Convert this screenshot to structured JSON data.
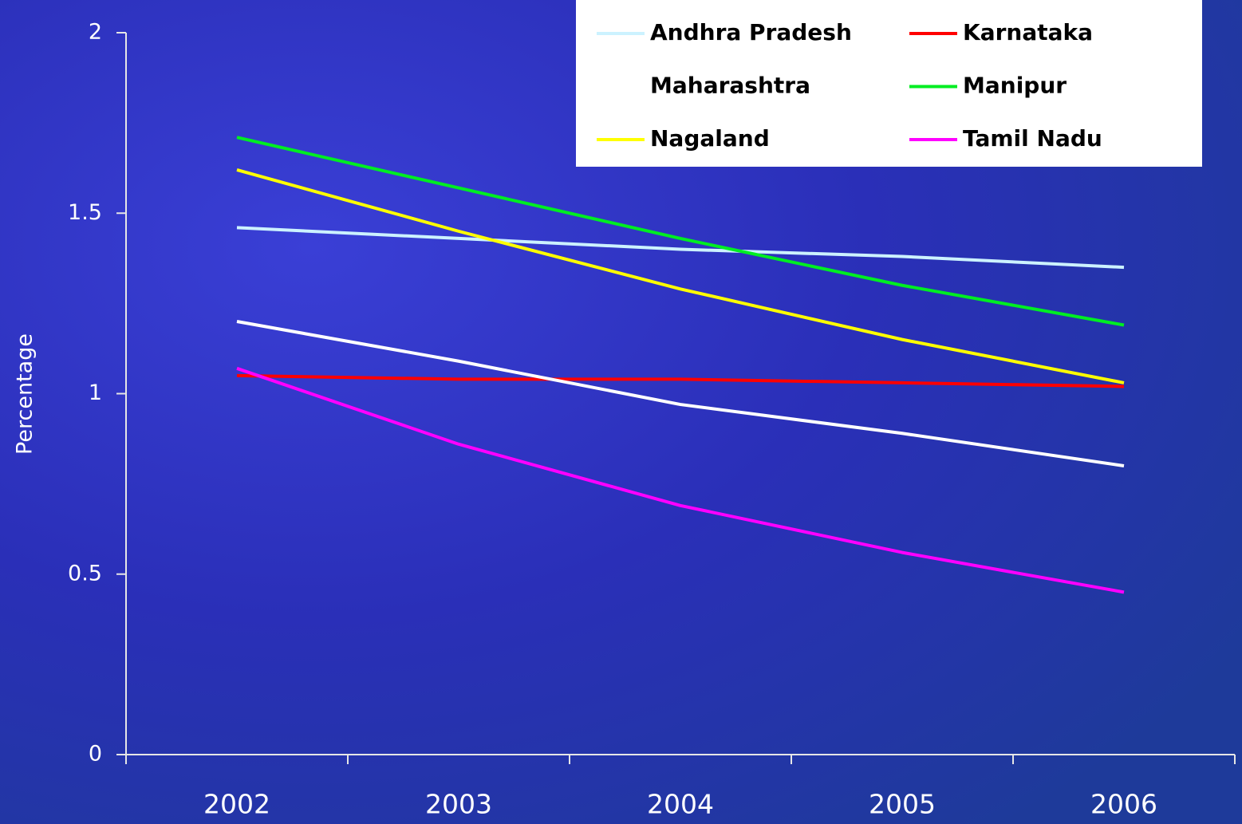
{
  "chart_data": {
    "type": "line",
    "y_label": "Percentage",
    "categories": [
      "2002",
      "2003",
      "2004",
      "2005",
      "2006"
    ],
    "series": [
      {
        "name": "Andhra Pradesh",
        "color": "#ccf2ff",
        "values": [
          1.46,
          1.43,
          1.4,
          1.38,
          1.35
        ]
      },
      {
        "name": "Karnataka",
        "color": "#ff0000",
        "values": [
          1.05,
          1.04,
          1.04,
          1.03,
          1.02
        ]
      },
      {
        "name": "Maharashtra",
        "color": "#ffffff",
        "values": [
          1.2,
          1.09,
          0.97,
          0.89,
          0.8
        ]
      },
      {
        "name": "Manipur",
        "color": "#00ee22",
        "values": [
          1.71,
          1.57,
          1.43,
          1.3,
          1.19
        ]
      },
      {
        "name": "Nagaland",
        "color": "#ffff00",
        "values": [
          1.62,
          1.45,
          1.29,
          1.15,
          1.03
        ]
      },
      {
        "name": "Tamil Nadu",
        "color": "#ff00ff",
        "values": [
          1.07,
          0.86,
          0.69,
          0.56,
          0.45
        ]
      }
    ],
    "ylim": [
      0,
      2
    ],
    "yticks": [
      0,
      0.5,
      1,
      1.5,
      2
    ],
    "legend": "top-right"
  }
}
